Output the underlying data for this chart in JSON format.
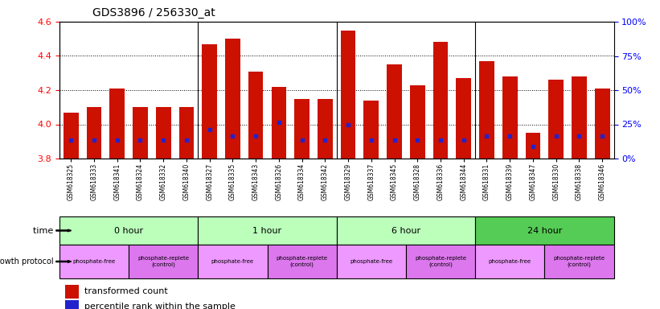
{
  "title": "GDS3896 / 256330_at",
  "samples": [
    "GSM618325",
    "GSM618333",
    "GSM618341",
    "GSM618324",
    "GSM618332",
    "GSM618340",
    "GSM618327",
    "GSM618335",
    "GSM618343",
    "GSM618326",
    "GSM618334",
    "GSM618342",
    "GSM618329",
    "GSM618337",
    "GSM618345",
    "GSM618328",
    "GSM618336",
    "GSM618344",
    "GSM618331",
    "GSM618339",
    "GSM618347",
    "GSM618330",
    "GSM618338",
    "GSM618346"
  ],
  "transformed_count": [
    4.07,
    4.1,
    4.21,
    4.1,
    4.1,
    4.1,
    4.47,
    4.5,
    4.31,
    4.22,
    4.15,
    4.15,
    4.55,
    4.14,
    4.35,
    4.23,
    4.48,
    4.27,
    4.37,
    4.28,
    3.95,
    4.26,
    4.28,
    4.21
  ],
  "percentile_rank": [
    3.91,
    3.91,
    3.91,
    3.91,
    3.91,
    3.91,
    3.97,
    3.93,
    3.93,
    4.01,
    3.91,
    3.91,
    4.0,
    3.91,
    3.91,
    3.91,
    3.91,
    3.91,
    3.93,
    3.93,
    3.87,
    3.93,
    3.93,
    3.93
  ],
  "ylim": [
    3.8,
    4.6
  ],
  "yticks": [
    3.8,
    4.0,
    4.2,
    4.4,
    4.6
  ],
  "right_ytick_vals": [
    0,
    25,
    50,
    75,
    100
  ],
  "bar_color": "#cc1100",
  "blue_color": "#2222cc",
  "baseline": 3.8,
  "background_color": "#ffffff",
  "time_labels": [
    "0 hour",
    "1 hour",
    "6 hour",
    "24 hour"
  ],
  "time_colors": [
    "#bbffbb",
    "#bbffbb",
    "#bbffbb",
    "#55cc55"
  ],
  "time_starts": [
    0,
    6,
    12,
    18
  ],
  "time_ends": [
    6,
    12,
    18,
    24
  ],
  "proto_labels": [
    "phosphate-free",
    "phosphate-replete\n(control)",
    "phosphate-free",
    "phosphate-replete\n(control)",
    "phosphate-free",
    "phosphate-replete\n(control)",
    "phosphate-free",
    "phosphate-replete\n(control)"
  ],
  "proto_starts": [
    0,
    3,
    6,
    9,
    12,
    15,
    18,
    21
  ],
  "proto_ends": [
    3,
    6,
    9,
    12,
    15,
    18,
    21,
    24
  ],
  "proto_colors": [
    "#ee99ff",
    "#dd77ee",
    "#ee99ff",
    "#dd77ee",
    "#ee99ff",
    "#dd77ee",
    "#ee99ff",
    "#dd77ee"
  ]
}
